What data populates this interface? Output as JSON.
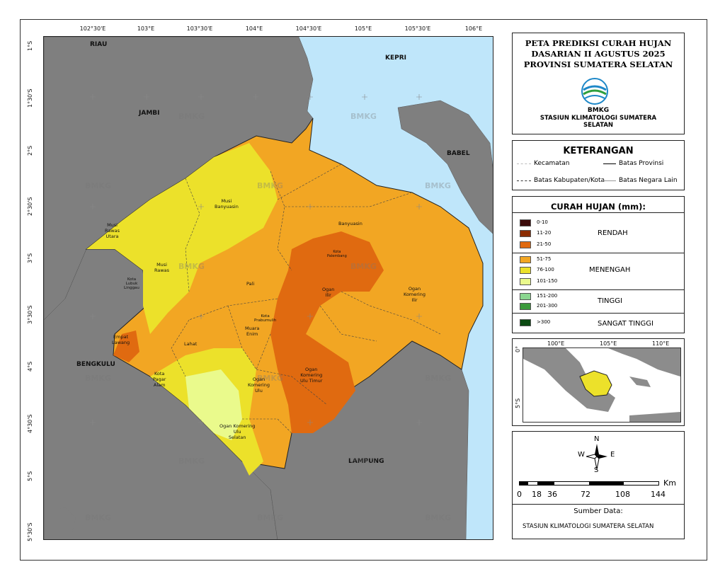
{
  "title": {
    "line1": "PETA PREDIKSI CURAH HUJAN",
    "line2": "DASARIAN II AGUSTUS 2025",
    "line3": "PROVINSI SUMATERA SELATAN"
  },
  "agency": {
    "logo_text": "BMKG",
    "station_line1": "STASIUN KLIMATOLOGI SUMATERA",
    "station_line2": "SELATAN"
  },
  "keterangan": {
    "heading": "KETERANGAN",
    "kecamatan": "Kecamatan",
    "batas_provinsi": "Batas Provinsi",
    "batas_kabupaten": "Batas Kabupaten/Kota",
    "batas_negara": "Batas Negara Lain"
  },
  "rainfall_legend": {
    "heading": "CURAH HUJAN (mm):",
    "classes": [
      {
        "label": "0-10",
        "color": "#3b0a0a"
      },
      {
        "label": "11-20",
        "color": "#8b2c00"
      },
      {
        "label": "21-50",
        "color": "#e06a10"
      },
      {
        "label": "51-75",
        "color": "#f2a623"
      },
      {
        "label": "76-100",
        "color": "#ece12a"
      },
      {
        "label": "101-150",
        "color": "#eafa8c"
      },
      {
        "label": "151-200",
        "color": "#8ad68f"
      },
      {
        "label": "201-300",
        "color": "#3c9a3c"
      },
      {
        "label": ">300",
        "color": "#0b4a12"
      }
    ],
    "categories": {
      "rendah": "RENDAH",
      "menengah": "MENENGAH",
      "tinggi": "TINGGI",
      "sangat_tinggi": "SANGAT TINGGI"
    }
  },
  "inset": {
    "x_ticks": [
      "100°E",
      "105°E",
      "110°E"
    ],
    "y_ticks": [
      "0°",
      "5°S"
    ]
  },
  "north_arrow": {
    "n": "N",
    "s": "S",
    "e": "E",
    "w": "W"
  },
  "scale_bar": {
    "unit": "Km",
    "ticks": [
      "0",
      "18",
      "36",
      "72",
      "108",
      "144"
    ]
  },
  "source": {
    "heading": "Sumber Data:",
    "value": "STASIUN KLIMATOLOGI SUMATERA SELATAN"
  },
  "map": {
    "top_ticks": [
      "102°30'E",
      "103°E",
      "103°30'E",
      "104°E",
      "104°30'E",
      "105°E",
      "105°30'E",
      "106°E"
    ],
    "left_ticks": [
      "1°S",
      "1°30'S",
      "2°S",
      "2°30'S",
      "3°S",
      "3°30'S",
      "4°S",
      "4°30'S",
      "5°S",
      "5°30'S"
    ],
    "neighbor_labels": {
      "riau": "RIAU",
      "jambi": "JAMBI",
      "kepri": "KEPRI",
      "babel": "BABEL",
      "bengkulu": "BENGKULU",
      "lampung": "LAMPUNG"
    },
    "district_labels": {
      "musi_rawas_utara": [
        "Musi",
        "Rawas",
        "Utara"
      ],
      "musi_banyuasin": [
        "Musi",
        "Banyuasin"
      ],
      "banyuasin": "Banyuasin",
      "musi_rawas": [
        "Musi",
        "Rawas"
      ],
      "kota_lubuk_linggau": [
        "Kota",
        "Lubuk",
        "Linggau"
      ],
      "palembang": [
        "Kota",
        "Palembang"
      ],
      "pali": "Pali",
      "ogan_ilir": [
        "Ogan",
        "Ilir"
      ],
      "ogan_komering_ilir": [
        "Ogan",
        "Komering",
        "Ilir"
      ],
      "kota_prabumulih": [
        "Kota",
        "Prabumulih"
      ],
      "muara_enim": [
        "Muara",
        "Enim"
      ],
      "empat_lawang": [
        "Empat",
        "Lawang"
      ],
      "lahat": "Lahat",
      "kota_pagar_alam": [
        "Kota",
        "Pagar",
        "Alam"
      ],
      "ogan_komering_ulu": [
        "Ogan",
        "Komering",
        "Ulu"
      ],
      "ogan_komering_ulu_timur": [
        "Ogan",
        "Komering",
        "Ulu Timur"
      ],
      "ogan_komering_ulu_selatan": [
        "Ogan Komering",
        "Ulu",
        "Selatan"
      ]
    },
    "watermark": "BMKG",
    "colors": {
      "sea": "#bfe6fa",
      "neighbor_land": "#7f7f7f"
    }
  }
}
